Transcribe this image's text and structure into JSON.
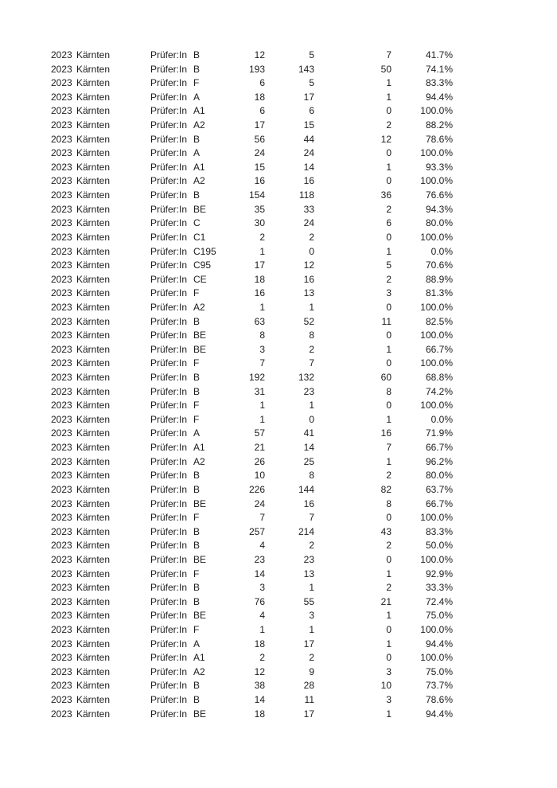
{
  "page": {
    "background_color": "#ffffff",
    "text_color": "#1c1c1c"
  },
  "table": {
    "shared": {
      "year": "2023",
      "region": "Kärnten",
      "examiner": "Prüfer:In"
    },
    "row_format": [
      "category",
      "total",
      "passed",
      "failed",
      "pass_rate"
    ],
    "rows": [
      [
        "B",
        "12",
        "5",
        "7",
        "41.7%"
      ],
      [
        "B",
        "193",
        "143",
        "50",
        "74.1%"
      ],
      [
        "F",
        "6",
        "5",
        "1",
        "83.3%"
      ],
      [
        "A",
        "18",
        "17",
        "1",
        "94.4%"
      ],
      [
        "A1",
        "6",
        "6",
        "0",
        "100.0%"
      ],
      [
        "A2",
        "17",
        "15",
        "2",
        "88.2%"
      ],
      [
        "B",
        "56",
        "44",
        "12",
        "78.6%"
      ],
      [
        "A",
        "24",
        "24",
        "0",
        "100.0%"
      ],
      [
        "A1",
        "15",
        "14",
        "1",
        "93.3%"
      ],
      [
        "A2",
        "16",
        "16",
        "0",
        "100.0%"
      ],
      [
        "B",
        "154",
        "118",
        "36",
        "76.6%"
      ],
      [
        "BE",
        "35",
        "33",
        "2",
        "94.3%"
      ],
      [
        "C",
        "30",
        "24",
        "6",
        "80.0%"
      ],
      [
        "C1",
        "2",
        "2",
        "0",
        "100.0%"
      ],
      [
        "C195",
        "1",
        "0",
        "1",
        "0.0%"
      ],
      [
        "C95",
        "17",
        "12",
        "5",
        "70.6%"
      ],
      [
        "CE",
        "18",
        "16",
        "2",
        "88.9%"
      ],
      [
        "F",
        "16",
        "13",
        "3",
        "81.3%"
      ],
      [
        "A2",
        "1",
        "1",
        "0",
        "100.0%"
      ],
      [
        "B",
        "63",
        "52",
        "11",
        "82.5%"
      ],
      [
        "BE",
        "8",
        "8",
        "0",
        "100.0%"
      ],
      [
        "BE",
        "3",
        "2",
        "1",
        "66.7%"
      ],
      [
        "F",
        "7",
        "7",
        "0",
        "100.0%"
      ],
      [
        "B",
        "192",
        "132",
        "60",
        "68.8%"
      ],
      [
        "B",
        "31",
        "23",
        "8",
        "74.2%"
      ],
      [
        "F",
        "1",
        "1",
        "0",
        "100.0%"
      ],
      [
        "F",
        "1",
        "0",
        "1",
        "0.0%"
      ],
      [
        "A",
        "57",
        "41",
        "16",
        "71.9%"
      ],
      [
        "A1",
        "21",
        "14",
        "7",
        "66.7%"
      ],
      [
        "A2",
        "26",
        "25",
        "1",
        "96.2%"
      ],
      [
        "B",
        "10",
        "8",
        "2",
        "80.0%"
      ],
      [
        "B",
        "226",
        "144",
        "82",
        "63.7%"
      ],
      [
        "BE",
        "24",
        "16",
        "8",
        "66.7%"
      ],
      [
        "F",
        "7",
        "7",
        "0",
        "100.0%"
      ],
      [
        "B",
        "257",
        "214",
        "43",
        "83.3%"
      ],
      [
        "B",
        "4",
        "2",
        "2",
        "50.0%"
      ],
      [
        "BE",
        "23",
        "23",
        "0",
        "100.0%"
      ],
      [
        "F",
        "14",
        "13",
        "1",
        "92.9%"
      ],
      [
        "B",
        "3",
        "1",
        "2",
        "33.3%"
      ],
      [
        "B",
        "76",
        "55",
        "21",
        "72.4%"
      ],
      [
        "BE",
        "4",
        "3",
        "1",
        "75.0%"
      ],
      [
        "F",
        "1",
        "1",
        "0",
        "100.0%"
      ],
      [
        "A",
        "18",
        "17",
        "1",
        "94.4%"
      ],
      [
        "A1",
        "2",
        "2",
        "0",
        "100.0%"
      ],
      [
        "A2",
        "12",
        "9",
        "3",
        "75.0%"
      ],
      [
        "B",
        "38",
        "28",
        "10",
        "73.7%"
      ],
      [
        "B",
        "14",
        "11",
        "3",
        "78.6%"
      ],
      [
        "BE",
        "18",
        "17",
        "1",
        "94.4%"
      ]
    ]
  }
}
